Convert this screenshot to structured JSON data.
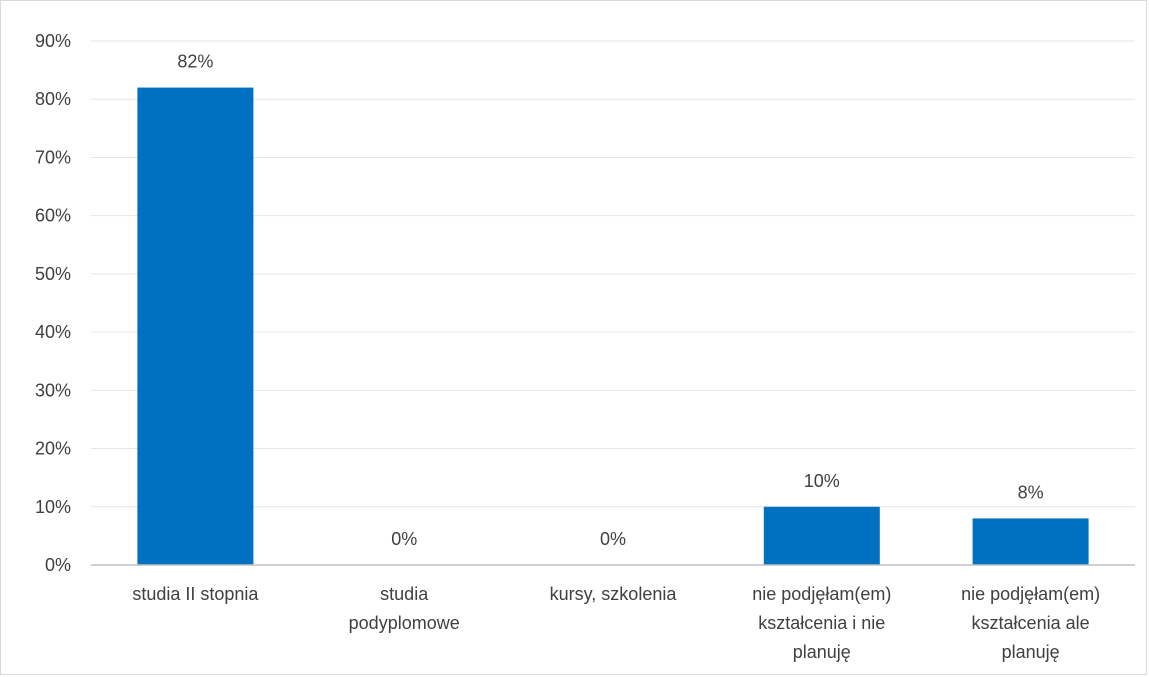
{
  "chart_data": {
    "type": "bar",
    "title": "",
    "xlabel": "",
    "ylabel": "",
    "ylim": [
      0,
      0.9
    ],
    "y_tick_step": 0.1,
    "y_tick_labels": [
      "0%",
      "10%",
      "20%",
      "30%",
      "40%",
      "50%",
      "60%",
      "70%",
      "80%",
      "90%"
    ],
    "grid": true,
    "legend": "none",
    "bar_color": "#0070c0",
    "categories": [
      [
        "studia II stopnia"
      ],
      [
        "studia",
        "podyplomowe"
      ],
      [
        "kursy, szkolenia"
      ],
      [
        "nie podjęłam(em)",
        "kształcenia i nie",
        "planuję"
      ],
      [
        "nie podjęłam(em)",
        "kształcenia ale",
        "planuję"
      ]
    ],
    "values": [
      0.82,
      0,
      0,
      0.1,
      0.08
    ],
    "data_labels": [
      "82%",
      "0%",
      "0%",
      "10%",
      "8%"
    ]
  }
}
